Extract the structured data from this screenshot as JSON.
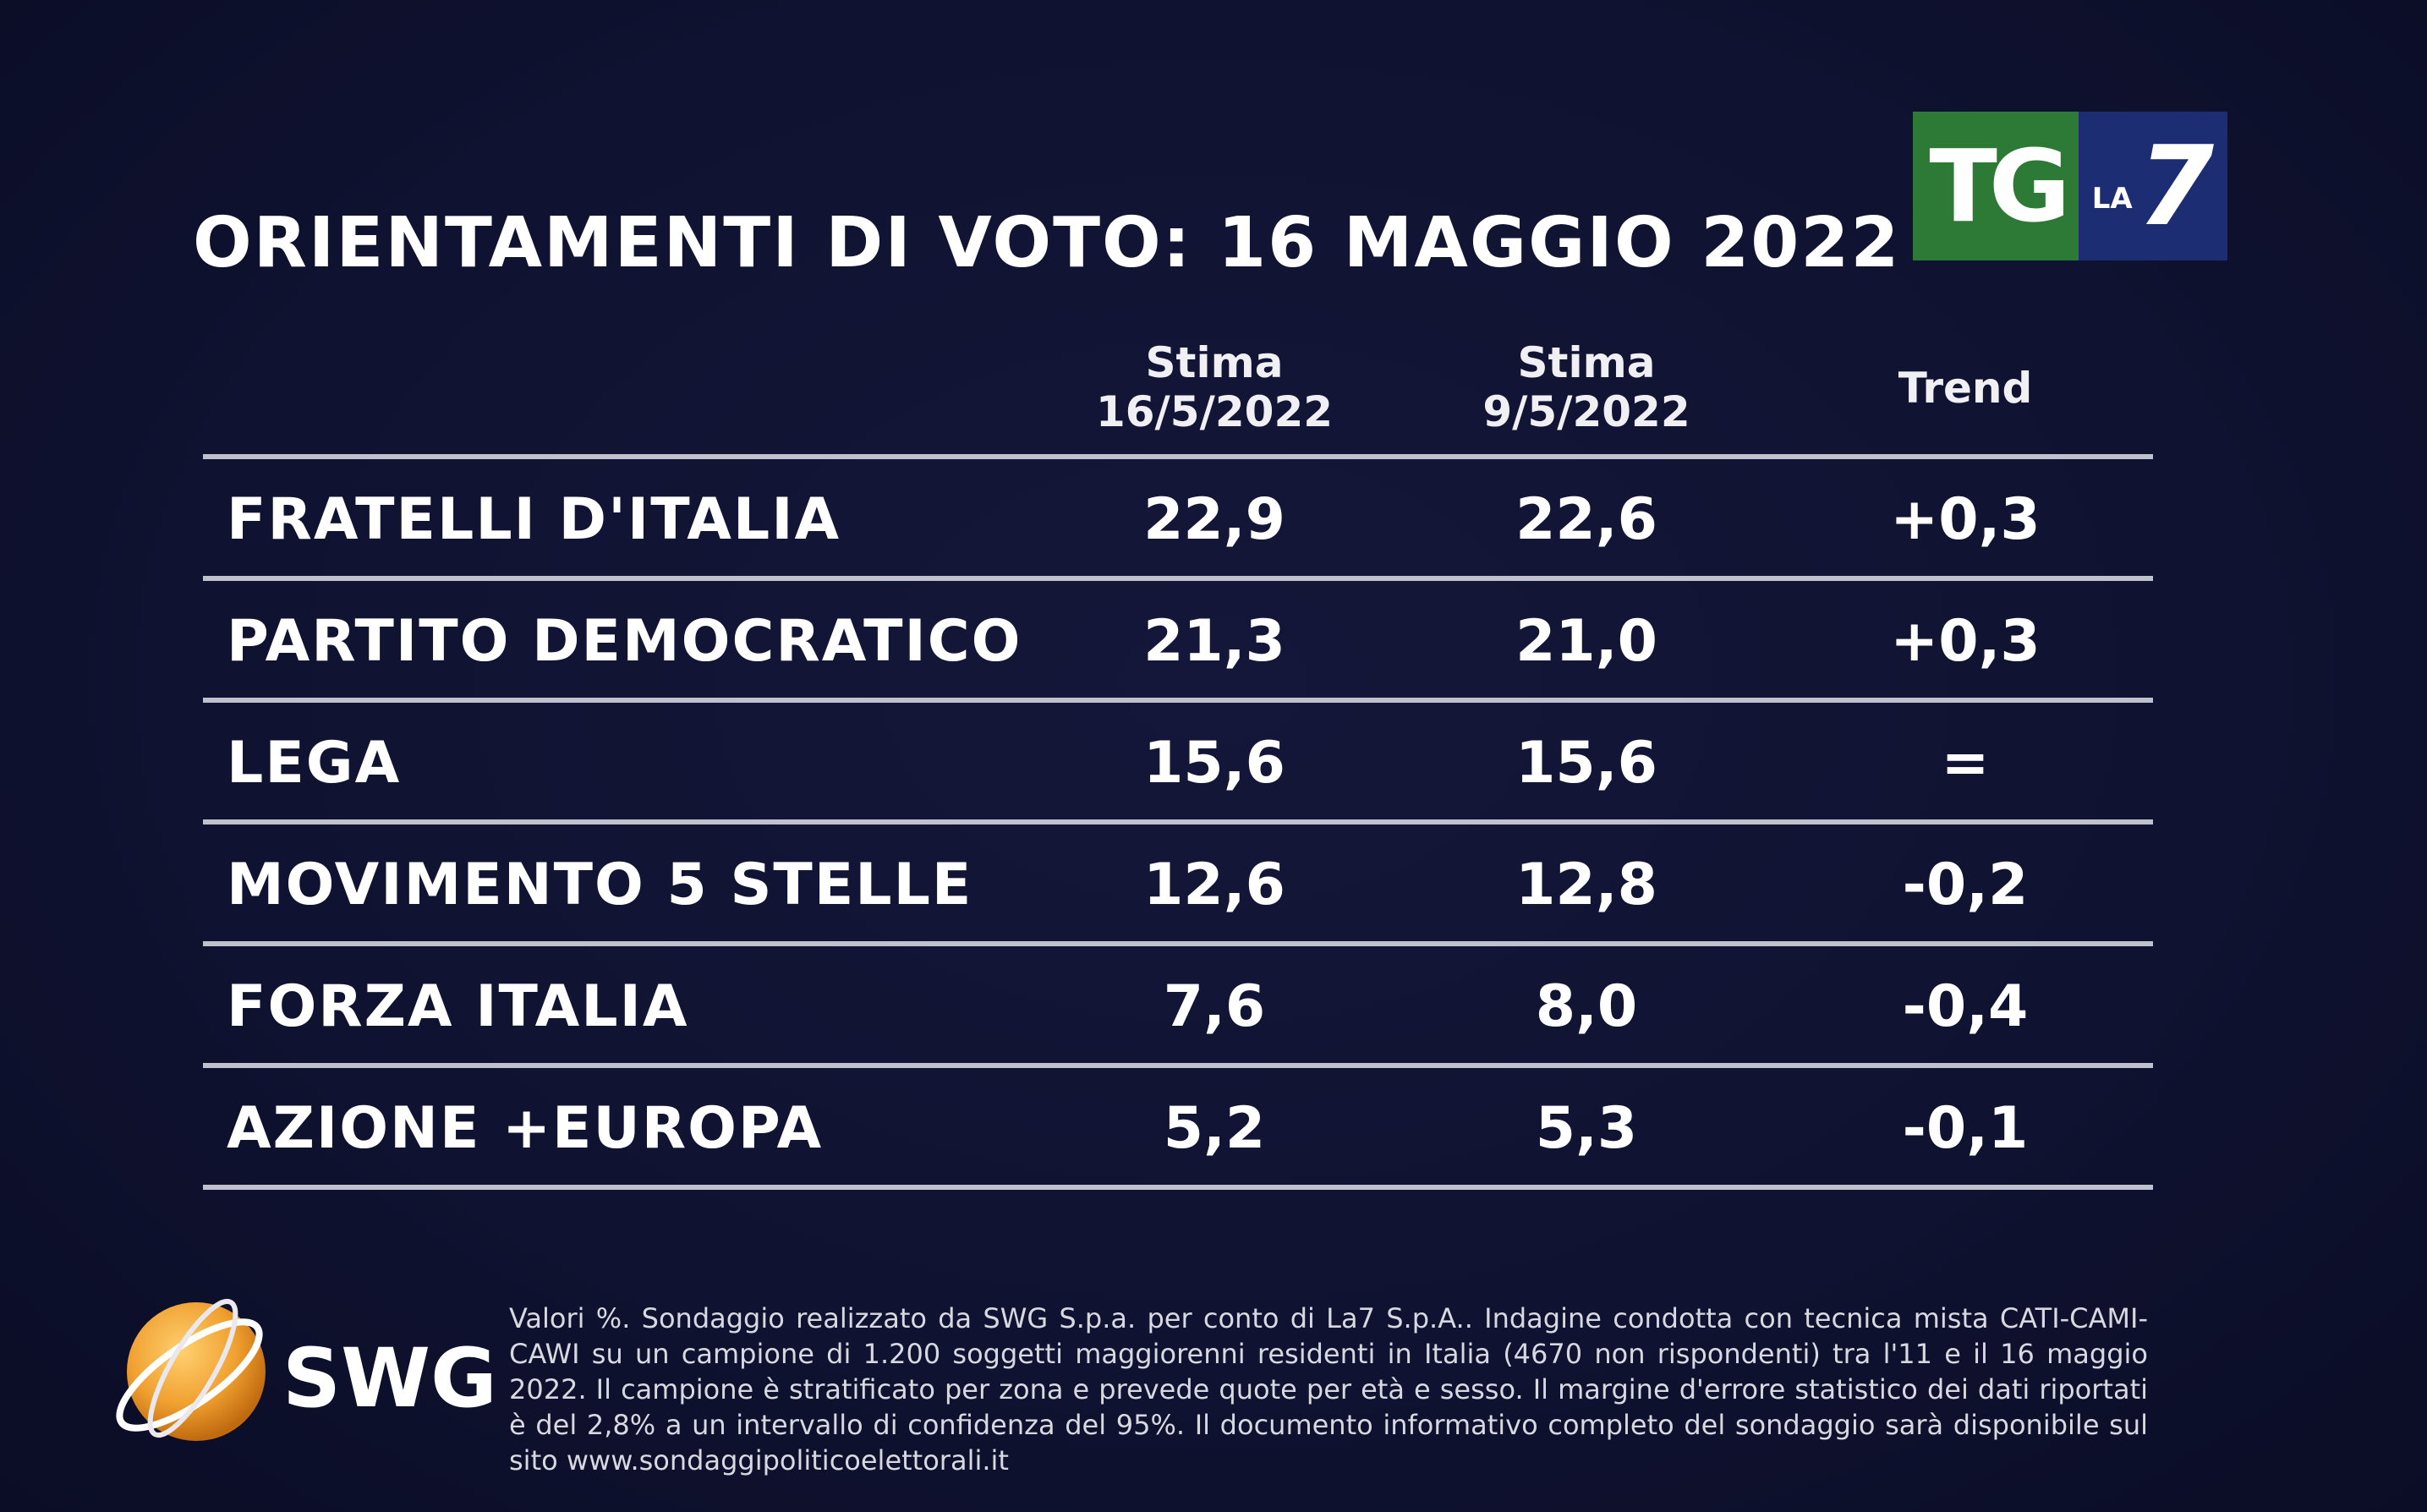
{
  "title": "ORIENTAMENTI DI VOTO: 16 MAGGIO 2022",
  "logo": {
    "tg": "TG",
    "la": "LA",
    "seven": "7"
  },
  "columns": {
    "stima1": {
      "line1": "Stima",
      "line2": "16/5/2022"
    },
    "stima2": {
      "line1": "Stima",
      "line2": "9/5/2022"
    },
    "trend": {
      "line1": "Trend"
    }
  },
  "rows": [
    {
      "party": "FRATELLI D'ITALIA",
      "stima1": "22,9",
      "stima2": "22,6",
      "trend": "+0,3"
    },
    {
      "party": "PARTITO DEMOCRATICO",
      "stima1": "21,3",
      "stima2": "21,0",
      "trend": "+0,3"
    },
    {
      "party": "LEGA",
      "stima1": "15,6",
      "stima2": "15,6",
      "trend": "="
    },
    {
      "party": "MOVIMENTO 5 STELLE",
      "stima1": "12,6",
      "stima2": "12,8",
      "trend": "-0,2"
    },
    {
      "party": "FORZA ITALIA",
      "stima1": "7,6",
      "stima2": "8,0",
      "trend": "-0,4"
    },
    {
      "party": "AZIONE +EUROPA",
      "stima1": "5,2",
      "stima2": "5,3",
      "trend": "-0,1"
    }
  ],
  "swg_label": "SWG",
  "footnote": "Valori %. Sondaggio realizzato da SWG S.p.a. per conto di La7 S.p.A.. Indagine condotta con tecnica mista CATI-CAMI-CAWI su un campione di 1.200 soggetti maggiorenni residenti in Italia (4670 non rispondenti) tra l'11 e il 16 maggio 2022. Il campione è stratificato per zona e prevede quote per età e sesso. Il margine d'errore statistico dei dati riportati è del 2,8% a un intervallo di confidenza del 95%. Il documento informativo completo del sondaggio sarà disponibile sul sito www.sondaggipoliticoelettorali.it",
  "colors": {
    "background": "#0f1230",
    "tg_green": "#2d7a37",
    "la7_blue": "#1d2d74",
    "swg_orange": "#f0a030"
  }
}
